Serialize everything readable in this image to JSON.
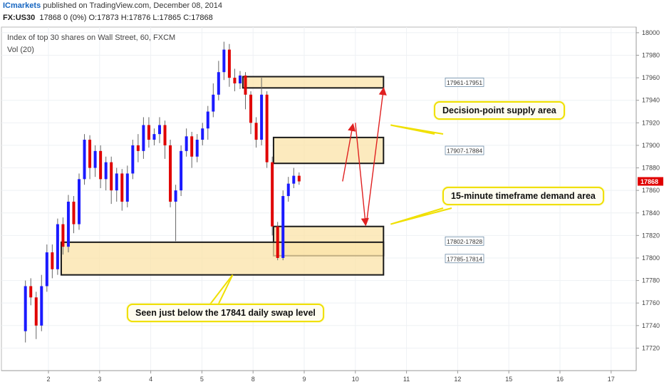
{
  "header": {
    "publisher": "ICmarkets",
    "published_text": "published on TradingView.com, December 08, 2014",
    "symbol": "FX:US30",
    "quote": "17868 0 (0%) O:17873 H:17876 L:17865 C:17868"
  },
  "chart_data": {
    "type": "candlestick",
    "title": "Index of top 30 shares on Wall Street, 60, FXCM",
    "indicator": "Vol (20)",
    "ylim": [
      17700,
      18005
    ],
    "y_ticks": [
      17720,
      17740,
      17760,
      17780,
      17800,
      17820,
      17840,
      17860,
      17880,
      17900,
      17920,
      17940,
      17960,
      17980,
      18000
    ],
    "x_ticks": [
      {
        "label": "2",
        "d": 2
      },
      {
        "label": "3",
        "d": 3
      },
      {
        "label": "4",
        "d": 4
      },
      {
        "label": "5",
        "d": 5
      },
      {
        "label": "8",
        "d": 6
      },
      {
        "label": "9",
        "d": 7
      },
      {
        "label": "10",
        "d": 8
      },
      {
        "label": "11",
        "d": 9
      },
      {
        "label": "12",
        "d": 10
      },
      {
        "label": "15",
        "d": 11
      },
      {
        "label": "16",
        "d": 12
      },
      {
        "label": "17",
        "d": 13
      }
    ],
    "last_price": "17868",
    "colors": {
      "up": "#1a1aff",
      "down": "#e00000",
      "zone_fill": "#fbe3a8",
      "zone_border": "#1a1a1a",
      "arrow": "#e02020",
      "callout_border": "#f0e000"
    },
    "candles": [
      [
        17735,
        17775,
        17725,
        17780
      ],
      [
        17775,
        17765,
        17758,
        17782
      ],
      [
        17765,
        17740,
        17728,
        17770
      ],
      [
        17740,
        17775,
        17735,
        17785
      ],
      [
        17775,
        17805,
        17770,
        17812
      ],
      [
        17805,
        17790,
        17782,
        17812
      ],
      [
        17790,
        17830,
        17785,
        17835
      ],
      [
        17830,
        17810,
        17803,
        17836
      ],
      [
        17810,
        17850,
        17805,
        17856
      ],
      [
        17850,
        17830,
        17822,
        17855
      ],
      [
        17830,
        17870,
        17825,
        17875
      ],
      [
        17870,
        17905,
        17865,
        17910
      ],
      [
        17905,
        17880,
        17870,
        17909
      ],
      [
        17880,
        17895,
        17872,
        17900
      ],
      [
        17895,
        17870,
        17862,
        17900
      ],
      [
        17870,
        17885,
        17860,
        17890
      ],
      [
        17885,
        17860,
        17848,
        17890
      ],
      [
        17860,
        17875,
        17850,
        17880
      ],
      [
        17875,
        17850,
        17842,
        17879
      ],
      [
        17850,
        17875,
        17845,
        17882
      ],
      [
        17875,
        17900,
        17870,
        17905
      ],
      [
        17900,
        17895,
        17885,
        17910
      ],
      [
        17895,
        17918,
        17888,
        17925
      ],
      [
        17918,
        17905,
        17898,
        17925
      ],
      [
        17905,
        17910,
        17900,
        17915
      ],
      [
        17910,
        17918,
        17902,
        17925
      ],
      [
        17918,
        17900,
        17888,
        17922
      ],
      [
        17900,
        17850,
        17845,
        17905
      ],
      [
        17850,
        17860,
        17815,
        17865
      ],
      [
        17860,
        17895,
        17855,
        17900
      ],
      [
        17895,
        17908,
        17890,
        17915
      ],
      [
        17908,
        17890,
        17880,
        17912
      ],
      [
        17890,
        17905,
        17885,
        17910
      ],
      [
        17905,
        17915,
        17900,
        17920
      ],
      [
        17915,
        17930,
        17905,
        17935
      ],
      [
        17930,
        17945,
        17925,
        17955
      ],
      [
        17945,
        17965,
        17940,
        17975
      ],
      [
        17965,
        17985,
        17958,
        17992
      ],
      [
        17985,
        17960,
        17952,
        17990
      ],
      [
        17960,
        17955,
        17948,
        17968
      ],
      [
        17955,
        17962,
        17950,
        17966
      ],
      [
        17962,
        17945,
        17932,
        17965
      ],
      [
        17945,
        17920,
        17910,
        17948
      ],
      [
        17920,
        17905,
        17898,
        17925
      ],
      [
        17905,
        17945,
        17900,
        17960
      ],
      [
        17945,
        17885,
        17880,
        17948
      ],
      [
        17885,
        17828,
        17820,
        17890
      ],
      [
        17828,
        17800,
        17798,
        17832
      ],
      [
        17800,
        17855,
        17798,
        17860
      ],
      [
        17855,
        17866,
        17850,
        17872
      ],
      [
        17866,
        17873,
        17862,
        17880
      ],
      [
        17873,
        17868,
        17865,
        17876
      ]
    ],
    "zones": [
      {
        "label": "17961-17951",
        "from": 17951,
        "to": 17961,
        "x0": 4.8,
        "x1": 7.55,
        "fill": true
      },
      {
        "label": "17907-17884",
        "from": 17884,
        "to": 17907,
        "x0": 5.4,
        "x1": 7.55,
        "fill": true
      },
      {
        "label": "17802-17828",
        "from": 17802,
        "to": 17828,
        "x0": 5.4,
        "x1": 7.55,
        "fill": true
      },
      {
        "label": "17785-17814",
        "from": 17785,
        "to": 17814,
        "x0": 1.25,
        "x1": 7.55,
        "fill": true
      }
    ],
    "arrows": [
      {
        "from": [
          6.75,
          17868
        ],
        "to": [
          6.95,
          17918
        ]
      },
      {
        "from": [
          7.0,
          17920
        ],
        "to": [
          7.2,
          17830
        ]
      },
      {
        "from": [
          7.22,
          17832
        ],
        "to": [
          7.55,
          17950
        ]
      }
    ],
    "annotations": [
      {
        "text": "Decision-point supply area",
        "pointer": [
          7.55,
          17918
        ]
      },
      {
        "text": "15-minute timeframe demand area",
        "pointer": [
          7.55,
          17830
        ]
      },
      {
        "text": "Seen just below the 17841 daily swap level",
        "pointer": [
          4.6,
          17785
        ]
      }
    ]
  }
}
